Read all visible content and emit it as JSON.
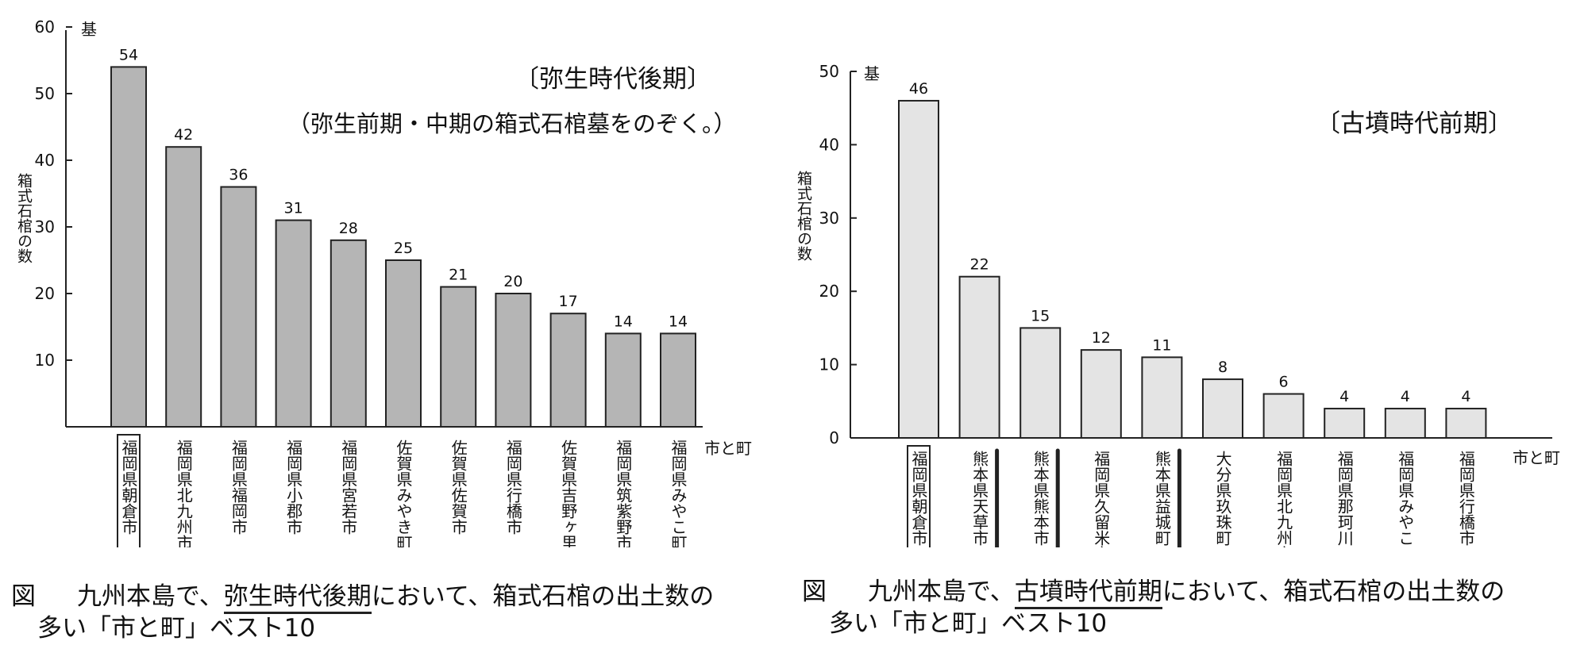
{
  "chart_data": [
    {
      "type": "bar",
      "title": "〔弥生時代後期〕",
      "subtitle": "（弥生前期・中期の箱式石棺墓をのぞく。）",
      "ylabel": "箱式石棺の数",
      "yunit": "基",
      "xlabel": "市と町",
      "ylim": [
        0,
        60
      ],
      "yticks": [
        10,
        20,
        30,
        40,
        50,
        60
      ],
      "bar_color": "#b5b5b5",
      "categories": [
        "福岡県朝倉市",
        "福岡県北九州市",
        "福岡県福岡市",
        "福岡県小郡市",
        "福岡県宮若市",
        "佐賀県みやき町",
        "佐賀県佐賀市",
        "福岡県行橋市",
        "佐賀県吉野ヶ里町",
        "福岡県筑紫野市",
        "福岡県みやこ町"
      ],
      "values": [
        54,
        42,
        36,
        31,
        28,
        25,
        21,
        20,
        17,
        14,
        14
      ],
      "boxed_categories": [
        0
      ],
      "circled_categories": [
        0
      ],
      "underlined_categories": []
    },
    {
      "type": "bar",
      "title": "〔古墳時代前期〕",
      "subtitle": "",
      "ylabel": "箱式石棺の数",
      "yunit": "基",
      "xlabel": "市と町",
      "ylim": [
        0,
        50
      ],
      "yticks": [
        0,
        10,
        20,
        30,
        40,
        50
      ],
      "bar_color": "#e4e4e4",
      "categories": [
        "福岡県朝倉市",
        "熊本県天草市",
        "熊本県熊本市",
        "福岡県久留米市",
        "熊本県益城町",
        "大分県玖珠町",
        "福岡県北九州市",
        "福岡県那珂川町",
        "福岡県みやこ町",
        "福岡県行橋市"
      ],
      "values": [
        46,
        22,
        15,
        12,
        11,
        8,
        6,
        4,
        4,
        4
      ],
      "boxed_categories": [
        0
      ],
      "circled_categories": [
        0
      ],
      "underlined_categories": [
        1,
        2,
        4
      ]
    }
  ],
  "captions": [
    {
      "fig": "図",
      "pre": "九州本島で、",
      "highlight": "弥生時代後期",
      "post": "において、箱式石棺の出土数の",
      "line2": "多い「市と町」ベスト10"
    },
    {
      "fig": "図",
      "pre": "九州本島で、",
      "highlight": "古墳時代前期",
      "post": "において、箱式石棺の出土数の",
      "line2": "多い「市と町」ベスト10"
    }
  ]
}
